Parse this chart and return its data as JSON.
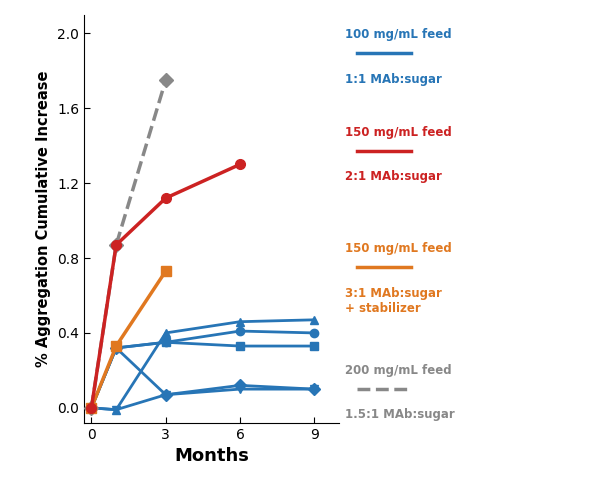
{
  "xlabel": "Months",
  "ylabel": "% Aggregation Cumulative Increase",
  "xlim": [
    -0.3,
    10.0
  ],
  "ylim": [
    -0.08,
    2.1
  ],
  "xticks": [
    0,
    3,
    6,
    9
  ],
  "yticks": [
    0.0,
    0.4,
    0.8,
    1.2,
    1.6,
    2.0
  ],
  "background_color": "#ffffff",
  "red_series": {
    "x": [
      0,
      1,
      3,
      6
    ],
    "y": [
      0.0,
      0.87,
      1.12,
      1.3
    ],
    "color": "#cc2222",
    "linestyle": "-",
    "marker": "o",
    "linewidth": 2.5,
    "markersize": 7
  },
  "gray_series": {
    "x": [
      0,
      1,
      3
    ],
    "y": [
      0.0,
      0.87,
      1.75
    ],
    "color": "#888888",
    "linestyle": "--",
    "marker": "D",
    "linewidth": 2.5,
    "markersize": 7
  },
  "orange_series": {
    "x": [
      0,
      1,
      3
    ],
    "y": [
      0.0,
      0.33,
      0.73
    ],
    "color": "#e07820",
    "linestyle": "-",
    "marker": "s",
    "linewidth": 2.5,
    "markersize": 7
  },
  "blue_series": [
    {
      "x": [
        0,
        1,
        3,
        6,
        9
      ],
      "y": [
        0.0,
        -0.01,
        0.4,
        0.46,
        0.47
      ],
      "marker": "^"
    },
    {
      "x": [
        0,
        1,
        3,
        6,
        9
      ],
      "y": [
        0.0,
        0.32,
        0.35,
        0.41,
        0.4
      ],
      "marker": "o"
    },
    {
      "x": [
        0,
        1,
        3,
        6,
        9
      ],
      "y": [
        0.0,
        0.32,
        0.35,
        0.33,
        0.33
      ],
      "marker": "s"
    },
    {
      "x": [
        0,
        1,
        3,
        6,
        9
      ],
      "y": [
        0.0,
        0.32,
        0.07,
        0.12,
        0.1
      ],
      "marker": "D"
    },
    {
      "x": [
        0,
        1,
        3,
        6,
        9
      ],
      "y": [
        0.0,
        -0.01,
        0.07,
        0.1,
        0.1
      ],
      "marker": "v"
    }
  ],
  "blue_color": "#2775b6",
  "blue_linewidth": 2.0,
  "blue_markersize": 6,
  "legend_items": [
    {
      "label1": "100 mg/mL feed",
      "label2": "1:1 MAb:sugar",
      "color": "#2775b6",
      "linestyle": "-",
      "ypos_fig": 0.86
    },
    {
      "label1": "150 mg/mL feed",
      "label2": "2:1 MAb:sugar",
      "color": "#cc2222",
      "linestyle": "-",
      "ypos_fig": 0.66
    },
    {
      "label1": "150 mg/mL feed",
      "label2": "3:1 MAb:sugar\n+ stabilizer",
      "color": "#e07820",
      "linestyle": "-",
      "ypos_fig": 0.42
    },
    {
      "label1": "200 mg/mL feed",
      "label2": "1.5:1 MAb:sugar",
      "color": "#888888",
      "linestyle": "--",
      "ypos_fig": 0.17
    }
  ]
}
